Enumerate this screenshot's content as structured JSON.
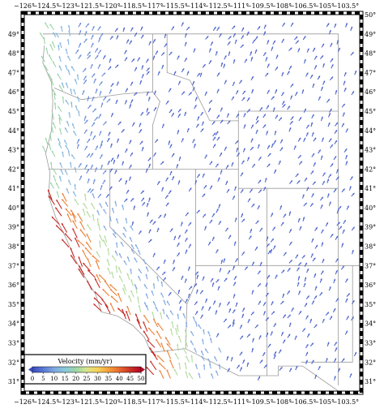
{
  "map": {
    "projection": "geographic",
    "lon_range": [
      -126,
      -102.5
    ],
    "lat_range": [
      30.5,
      50
    ],
    "top_tick_labels": [
      "−126°",
      "−124.5°",
      "−123°",
      "−121.5°",
      "−120°",
      "−118.5°",
      "−117°",
      "−115.5°",
      "−114°",
      "−112.5°",
      "−111°",
      "−109.5°",
      "−108°",
      "−106.5°",
      "−105°",
      "−103.5°"
    ],
    "bottom_tick_labels": [
      "−126°",
      "−124.5°",
      "−123°",
      "−121.5°",
      "−120°",
      "−118.5°",
      "−117°",
      "−115.5°",
      "−114°",
      "−112.5°",
      "−111°",
      "−109.5°",
      "−108°",
      "−106.5°",
      "−105°",
      "−103.5°"
    ],
    "left_tick_labels": [
      "49°",
      "48°",
      "47°",
      "46°",
      "45°",
      "44°",
      "43°",
      "42°",
      "41°",
      "40°",
      "39°",
      "38°",
      "37°",
      "36°",
      "35°",
      "34°",
      "33°",
      "32°",
      "31°"
    ],
    "right_tick_labels": [
      "50°",
      "49°",
      "48°",
      "47°",
      "46°",
      "45°",
      "44°",
      "43°",
      "42°",
      "41°",
      "40°",
      "39°",
      "38°",
      "37°",
      "36°",
      "35°",
      "34°",
      "33°",
      "32°",
      "31°"
    ],
    "vector_style": "arrows colored by velocity",
    "frame_style": "dashed black and white border"
  },
  "legend": {
    "title": "Velocity (mm/yr)",
    "ticks": [
      "0",
      "5",
      "10",
      "15",
      "20",
      "25",
      "30",
      "35",
      "40",
      "45",
      "50"
    ],
    "min": 0,
    "max": 50,
    "colors": [
      "#3b4cc0",
      "#5a78d6",
      "#7fa8e0",
      "#89c8d8",
      "#9bd5a8",
      "#d8e58a",
      "#f7d25a",
      "#f5a03c",
      "#e86a2e",
      "#cc3326",
      "#b40426"
    ]
  },
  "colors": {
    "land": "#ffffff",
    "borders": "#9a9a9a",
    "arrow_low": "#8fa3d8"
  }
}
